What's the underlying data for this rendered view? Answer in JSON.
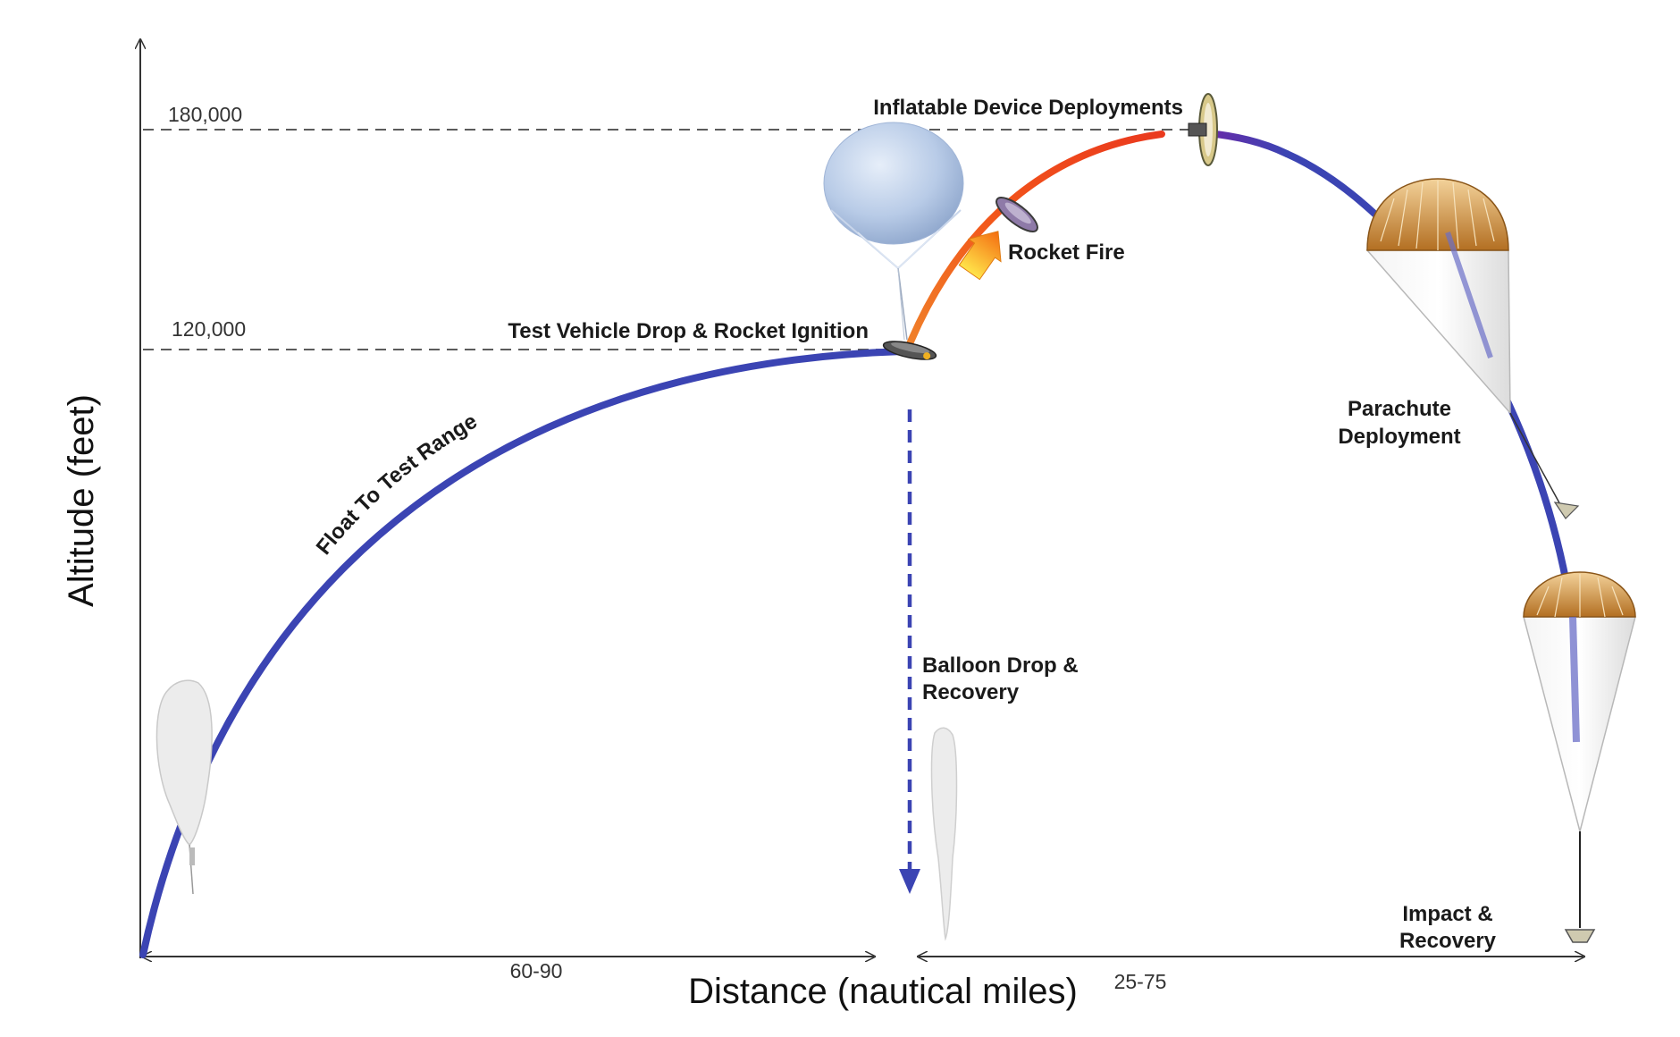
{
  "chart": {
    "y_axis_title": "Altitude (feet)",
    "x_axis_title": "Distance (nautical miles)",
    "y_ticks": [
      "180,000",
      "120,000"
    ],
    "distance_segments": [
      "60-90",
      "25-75"
    ]
  },
  "labels": {
    "float": "Float To Test Range",
    "drop": "Test Vehicle Drop & Rocket Ignition",
    "inflatable": "Inflatable Device Deployments",
    "rocket": "Rocket Fire",
    "balloon_line1": "Balloon Drop &",
    "balloon_line2": "Recovery",
    "parachute_line1": "Parachute",
    "parachute_line2": "Deployment",
    "impact_line1": "Impact &",
    "impact_line2": "Recovery"
  },
  "colors": {
    "float_path": "#3b44b3",
    "rocket_path": "#f36412",
    "descent_path": "#3b44b3",
    "transition_path": "#7b2fa8",
    "drop_arrow": "#3b44b3",
    "balloon": "#a9bfe0",
    "parachute_canopy": "#c9862c"
  },
  "icons": [
    "balloon-launch-icon",
    "balloon-float-icon",
    "test-vehicle-icon",
    "rocket-exhaust-icon",
    "inflatable-decelerator-icon",
    "parachute-icon",
    "deflated-balloon-icon",
    "capsule-icon"
  ]
}
